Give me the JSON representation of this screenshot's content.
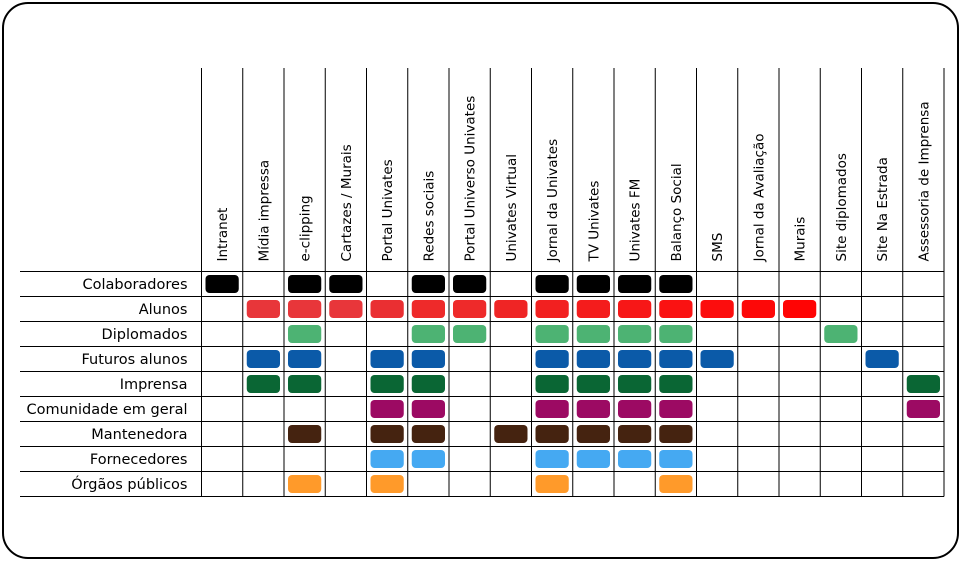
{
  "chart_data": {
    "type": "table",
    "title": "",
    "columns": [
      "Intranet",
      "Mídia impressa",
      "e-clipping",
      "Cartazes / Murais",
      "Portal Univates",
      "Redes sociais",
      "Portal Universo Univates",
      "Univates Virtual",
      "Jornal da Univates",
      "TV Univates",
      "Univates FM",
      "Balanço Social",
      "SMS",
      "Jornal da Avaliação",
      "Murais",
      "Site diplomados",
      "Site Na Estrada",
      "Assessoria de Imprensa"
    ],
    "rows": [
      {
        "label": "Colaboradores",
        "color": "#000000",
        "cells": [
          0,
          2,
          3,
          5,
          6,
          8,
          9,
          10,
          11
        ]
      },
      {
        "label": "Alunos",
        "color": "#ee2a2a",
        "cells": [
          1,
          2,
          3,
          4,
          5,
          6,
          7,
          8,
          9,
          10,
          11,
          12,
          13,
          14
        ],
        "colors": {
          "1": "#e8363a",
          "2": "#e8363a",
          "3": "#e8363a",
          "4": "#ea2f32",
          "5": "#ee2a2a",
          "6": "#ee2a2a",
          "7": "#ef2525",
          "8": "#f22020",
          "9": "#f41c1c",
          "10": "#f71717",
          "11": "#fa1212",
          "12": "#fc0d0d",
          "13": "#fd0808",
          "14": "#ff0404"
        }
      },
      {
        "label": "Diplomados",
        "color": "#4db373",
        "cells": [
          2,
          5,
          6,
          8,
          9,
          10,
          11,
          15
        ]
      },
      {
        "label": "Futuros alunos",
        "color": "#0b5aa8",
        "cells": [
          1,
          2,
          4,
          5,
          8,
          9,
          10,
          11,
          12,
          16
        ]
      },
      {
        "label": "Imprensa",
        "color": "#0a6634",
        "cells": [
          1,
          2,
          4,
          5,
          8,
          9,
          10,
          11,
          17
        ]
      },
      {
        "label": "Comunidade em geral",
        "color": "#9c0a63",
        "cells": [
          4,
          5,
          8,
          9,
          10,
          11,
          17
        ]
      },
      {
        "label": "Mantenedora",
        "color": "#452310",
        "cells": [
          2,
          4,
          5,
          7,
          8,
          9,
          10,
          11
        ]
      },
      {
        "label": "Fornecedores",
        "color": "#45a9f2",
        "cells": [
          4,
          5,
          8,
          9,
          10,
          11
        ]
      },
      {
        "label": "Órgãos públicos",
        "color": "#ff9a2a",
        "cells": [
          2,
          4,
          8,
          11
        ]
      }
    ]
  }
}
